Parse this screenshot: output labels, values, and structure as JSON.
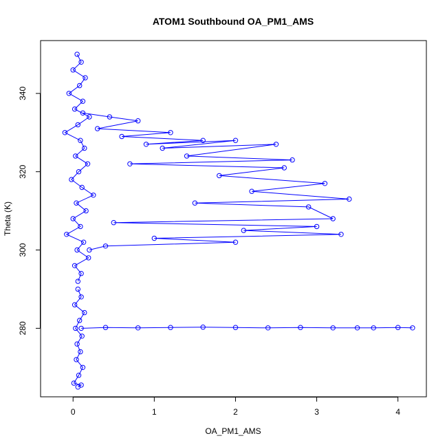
{
  "chart_data": {
    "type": "scatter",
    "title": "ATOM1 Southbound OA_PM1_AMS",
    "xlabel": "OA_PM1_AMS",
    "ylabel": "Theta (K)",
    "xlim": [
      -0.4,
      4.35
    ],
    "ylim": [
      262.5,
      353.5
    ],
    "xticks": [
      "0",
      "1",
      "2",
      "3",
      "4"
    ],
    "yticks": [
      "280",
      "300",
      "320",
      "340"
    ],
    "grid": false,
    "legend": "none",
    "style": {
      "marker": "open-circle",
      "connect_points": true,
      "color": "#0000ff"
    },
    "series": [
      {
        "x": [
          0.05,
          0.1,
          0.0,
          0.15,
          0.08,
          -0.05,
          0.12,
          0.02,
          0.2,
          0.06,
          -0.1,
          0.09,
          0.14,
          0.03,
          0.18,
          0.07,
          -0.02,
          0.11,
          0.25,
          0.04,
          0.16,
          0.0,
          0.09,
          -0.08,
          0.13,
          0.05,
          0.19,
          0.02,
          0.1,
          0.06
        ],
        "y": [
          350,
          348,
          346,
          344,
          342,
          340,
          338,
          336,
          334,
          332,
          330,
          328,
          326,
          324,
          322,
          320,
          318,
          316,
          314,
          312,
          310,
          308,
          306,
          304,
          302,
          300,
          298,
          296,
          294,
          292
        ]
      },
      {
        "x": [
          0.12,
          0.45,
          0.8,
          0.3,
          1.2,
          0.6,
          1.6,
          0.9,
          2.0,
          1.1,
          2.5,
          1.4,
          2.7,
          0.7,
          2.6,
          1.8,
          3.1,
          2.2,
          3.4,
          1.5,
          2.9,
          3.2,
          0.5,
          3.0,
          2.1,
          3.3,
          1.0,
          2.0,
          0.4,
          0.2
        ],
        "y": [
          335,
          334,
          333,
          331,
          330,
          329,
          328,
          327,
          328,
          326,
          327,
          324,
          323,
          322,
          321,
          319,
          317,
          315,
          313,
          312,
          311,
          308,
          307,
          306,
          305,
          304,
          303,
          302,
          301,
          300
        ]
      },
      {
        "x": [
          0.1,
          0.4,
          0.8,
          1.2,
          1.6,
          2.0,
          2.4,
          2.8,
          3.2,
          3.5,
          3.7,
          4.0,
          4.18
        ],
        "y": [
          280,
          280.2,
          280.1,
          280.2,
          280.3,
          280.2,
          280.1,
          280.2,
          280.1,
          280.1,
          280.1,
          280.2,
          280.1
        ]
      },
      {
        "x": [
          0.06,
          0.1,
          0.02,
          0.14,
          0.08,
          0.03,
          0.11,
          0.05,
          0.09,
          0.04,
          0.12,
          0.07,
          0.01,
          0.1,
          0.06
        ],
        "y": [
          290,
          288,
          286,
          284,
          282,
          280,
          278,
          276,
          274,
          272,
          270,
          268,
          266,
          265.5,
          265
        ]
      }
    ]
  }
}
